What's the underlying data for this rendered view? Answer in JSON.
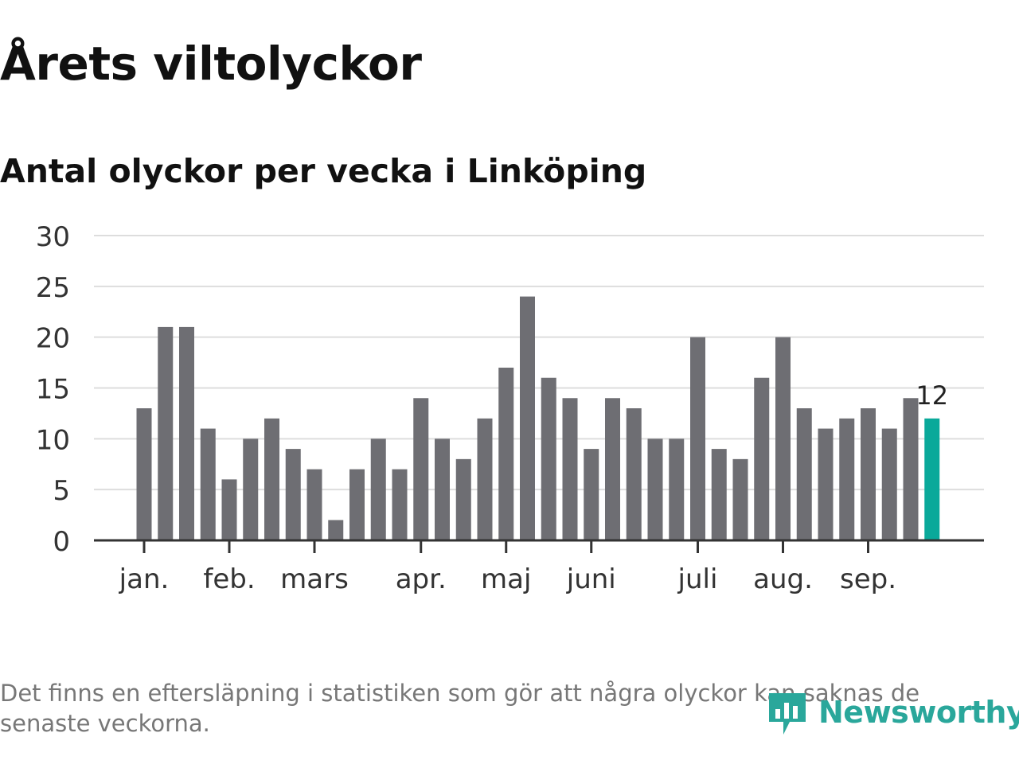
{
  "header": {
    "title": "Årets viltolyckor",
    "subtitle": "Antal olyckor per vecka i Linköping"
  },
  "footnote": "Det finns en eftersläpning i statistiken som gör att några olyckor kan saknas de senaste veckorna.",
  "brand": {
    "name": "Newsworthy",
    "icon": "newsworthy-logo-icon",
    "color": "#2aa79b"
  },
  "chart_data": {
    "type": "bar",
    "title": "Antal olyckor per vecka i Linköping",
    "xlabel": "",
    "ylabel": "",
    "ylim": [
      0,
      30
    ],
    "yticks": [
      0,
      5,
      10,
      15,
      20,
      25,
      30
    ],
    "grid": true,
    "legend": "none",
    "values": [
      13,
      21,
      21,
      11,
      6,
      10,
      12,
      9,
      7,
      2,
      7,
      10,
      7,
      14,
      10,
      8,
      12,
      17,
      24,
      16,
      14,
      9,
      14,
      13,
      10,
      10,
      20,
      9,
      8,
      16,
      20,
      13,
      11,
      12,
      13,
      11,
      14,
      12
    ],
    "month_labels": [
      {
        "label": "jan.",
        "week": 1
      },
      {
        "label": "feb.",
        "week": 5
      },
      {
        "label": "mars",
        "week": 9
      },
      {
        "label": "apr.",
        "week": 14
      },
      {
        "label": "maj",
        "week": 18
      },
      {
        "label": "juni",
        "week": 22
      },
      {
        "label": "juli",
        "week": 27
      },
      {
        "label": "aug.",
        "week": 31
      },
      {
        "label": "sep.",
        "week": 35
      }
    ],
    "highlight": {
      "index": 37,
      "label": "12"
    },
    "colors": {
      "bar": "#6e6e73",
      "highlight": "#0aa99a",
      "grid": "#dddddd",
      "axis": "#333333"
    }
  }
}
